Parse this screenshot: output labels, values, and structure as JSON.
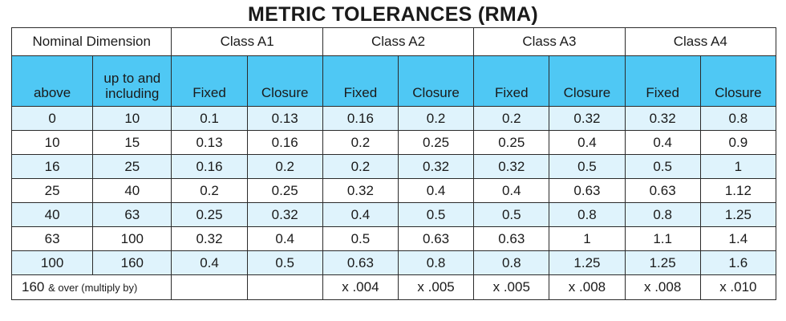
{
  "title": "METRIC TOLERANCES (RMA)",
  "header": {
    "nominal_dimension": "Nominal Dimension",
    "classes": [
      "Class A1",
      "Class A2",
      "Class A3",
      "Class A4"
    ],
    "above": "above",
    "up_to_line1": "up to and",
    "up_to_line2": "including",
    "fixed": "Fixed",
    "closure": "Closure"
  },
  "rows": [
    [
      "0",
      "10",
      "0.1",
      "0.13",
      "0.16",
      "0.2",
      "0.2",
      "0.32",
      "0.32",
      "0.8"
    ],
    [
      "10",
      "15",
      "0.13",
      "0.16",
      "0.2",
      "0.25",
      "0.25",
      "0.4",
      "0.4",
      "0.9"
    ],
    [
      "16",
      "25",
      "0.16",
      "0.2",
      "0.2",
      "0.32",
      "0.32",
      "0.5",
      "0.5",
      "1"
    ],
    [
      "25",
      "40",
      "0.2",
      "0.25",
      "0.32",
      "0.4",
      "0.4",
      "0.63",
      "0.63",
      "1.12"
    ],
    [
      "40",
      "63",
      "0.25",
      "0.32",
      "0.4",
      "0.5",
      "0.5",
      "0.8",
      "0.8",
      "1.25"
    ],
    [
      "63",
      "100",
      "0.32",
      "0.4",
      "0.5",
      "0.63",
      "0.63",
      "1",
      "1.1",
      "1.4"
    ],
    [
      "100",
      "160",
      "0.4",
      "0.5",
      "0.63",
      "0.8",
      "0.8",
      "1.25",
      "1.25",
      "1.6"
    ]
  ],
  "footer": {
    "label_main": "160",
    "label_small": "& over (multiply by)",
    "values": [
      "",
      "",
      "x .004",
      "x .005",
      "x .005",
      "x .008",
      "x .008",
      "x .010"
    ]
  }
}
